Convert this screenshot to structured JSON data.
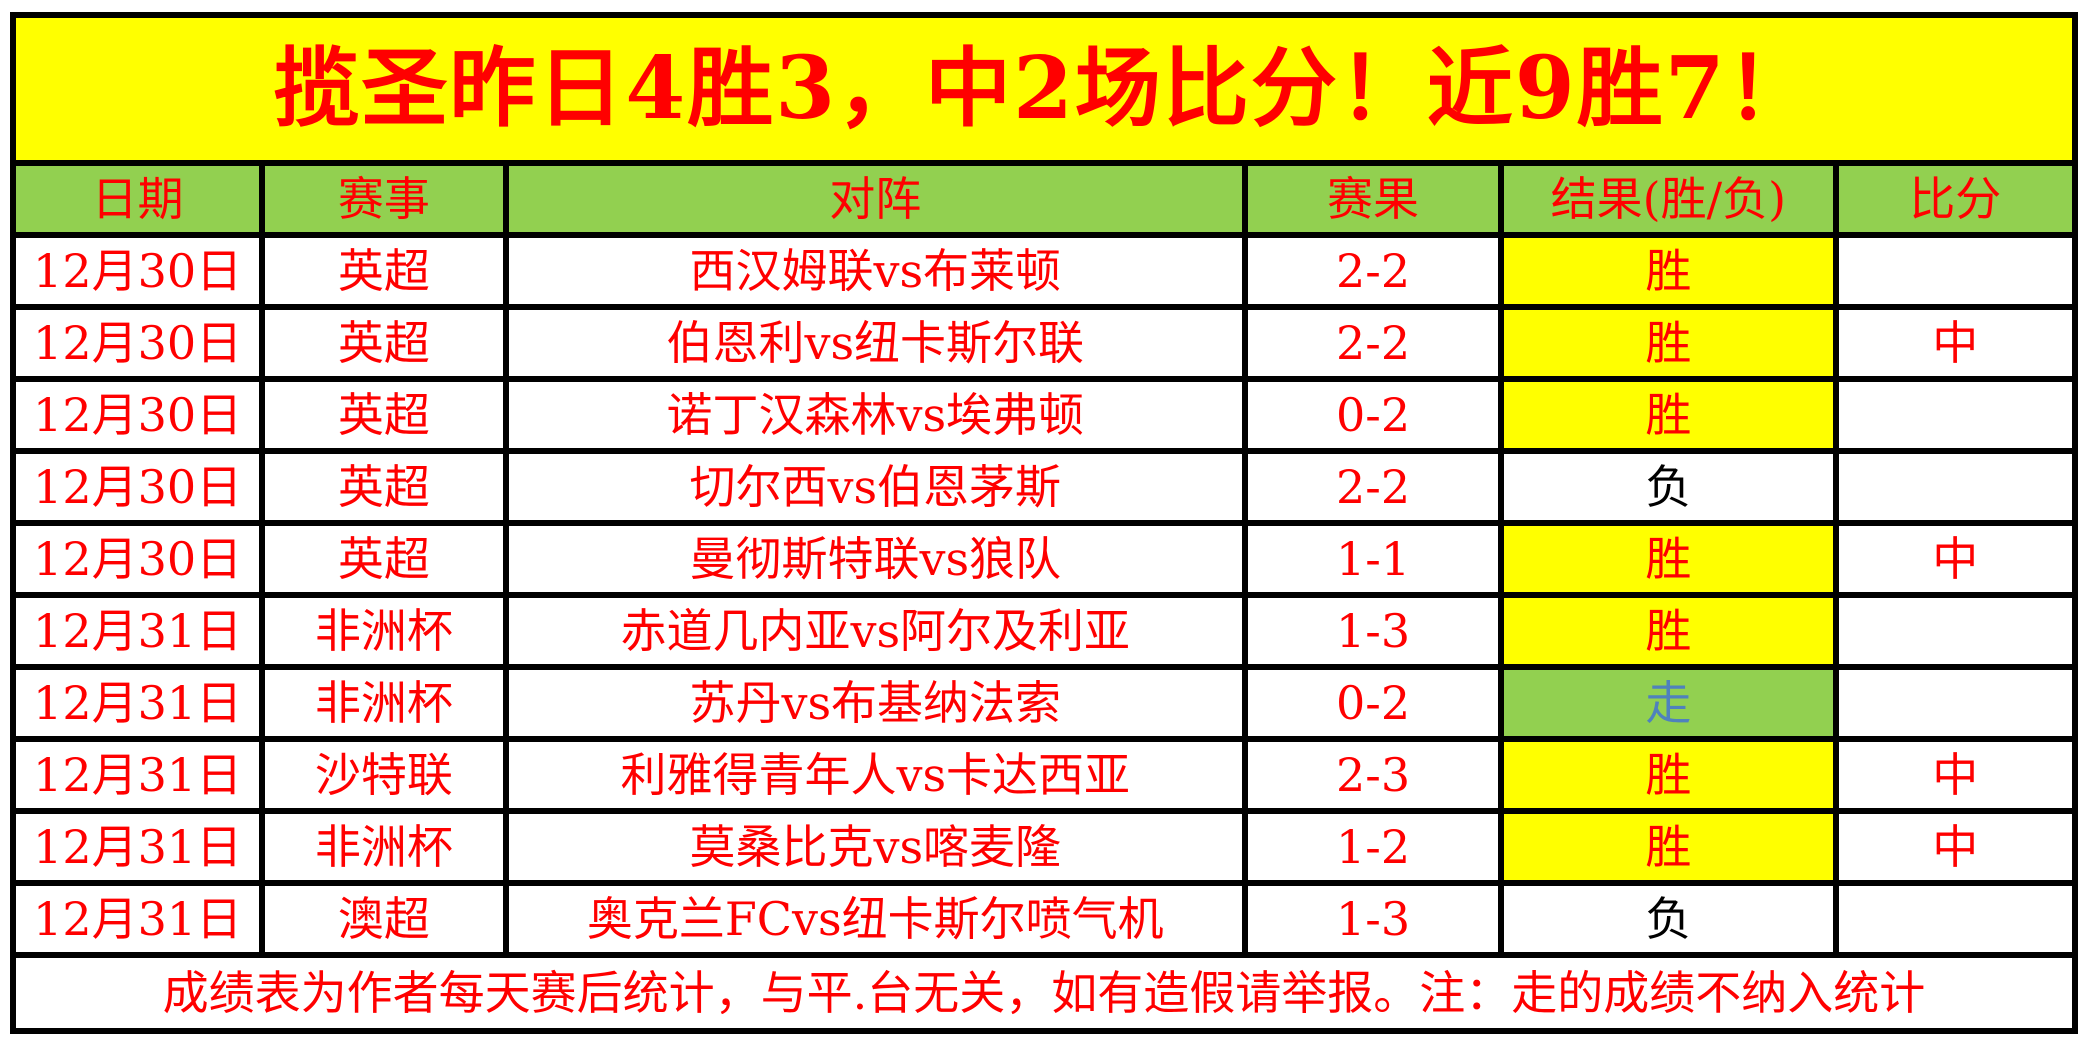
{
  "banner": {
    "title": "揽圣昨日4胜3，中2场比分！近9胜7！"
  },
  "table": {
    "columns": [
      {
        "key": "date",
        "label": "日期"
      },
      {
        "key": "league",
        "label": "赛事"
      },
      {
        "key": "match",
        "label": "对阵"
      },
      {
        "key": "score",
        "label": "赛果"
      },
      {
        "key": "result",
        "label": "结果(胜/负)"
      },
      {
        "key": "hit",
        "label": "比分"
      }
    ],
    "rows": [
      {
        "date": "12月30日",
        "league": "英超",
        "match": "西汉姆联vs布莱顿",
        "score": "2-2",
        "result": "胜",
        "result_type": "win",
        "hit": ""
      },
      {
        "date": "12月30日",
        "league": "英超",
        "match": "伯恩利vs纽卡斯尔联",
        "score": "2-2",
        "result": "胜",
        "result_type": "win",
        "hit": "中"
      },
      {
        "date": "12月30日",
        "league": "英超",
        "match": "诺丁汉森林vs埃弗顿",
        "score": "0-2",
        "result": "胜",
        "result_type": "win",
        "hit": ""
      },
      {
        "date": "12月30日",
        "league": "英超",
        "match": "切尔西vs伯恩茅斯",
        "score": "2-2",
        "result": "负",
        "result_type": "loss",
        "hit": ""
      },
      {
        "date": "12月30日",
        "league": "英超",
        "match": "曼彻斯特联vs狼队",
        "score": "1-1",
        "result": "胜",
        "result_type": "win",
        "hit": "中"
      },
      {
        "date": "12月31日",
        "league": "非洲杯",
        "match": "赤道几内亚vs阿尔及利亚",
        "score": "1-3",
        "result": "胜",
        "result_type": "win",
        "hit": ""
      },
      {
        "date": "12月31日",
        "league": "非洲杯",
        "match": "苏丹vs布基纳法索",
        "score": "0-2",
        "result": "走",
        "result_type": "push",
        "hit": ""
      },
      {
        "date": "12月31日",
        "league": "沙特联",
        "match": "利雅得青年人vs卡达西亚",
        "score": "2-3",
        "result": "胜",
        "result_type": "win",
        "hit": "中"
      },
      {
        "date": "12月31日",
        "league": "非洲杯",
        "match": "莫桑比克vs喀麦隆",
        "score": "1-2",
        "result": "胜",
        "result_type": "win",
        "hit": "中"
      },
      {
        "date": "12月31日",
        "league": "澳超",
        "match": "奥克兰FCvs纽卡斯尔喷气机",
        "score": "1-3",
        "result": "负",
        "result_type": "loss",
        "hit": ""
      }
    ]
  },
  "footer": {
    "note": "成绩表为作者每天赛后统计，与平.台无关，如有造假请举报。注：走的成绩不纳入统计"
  },
  "colors": {
    "banner_bg": "#FFFF00",
    "banner_text": "#FF0000",
    "header_bg": "#92D050",
    "cell_text_red": "#FF0000",
    "win_bg": "#FFFF00",
    "win_text": "#FF0000",
    "loss_bg": "#FFFFFF",
    "loss_text": "#000000",
    "push_bg": "#92D050",
    "push_text": "#4F81BD",
    "border": "#000000"
  }
}
